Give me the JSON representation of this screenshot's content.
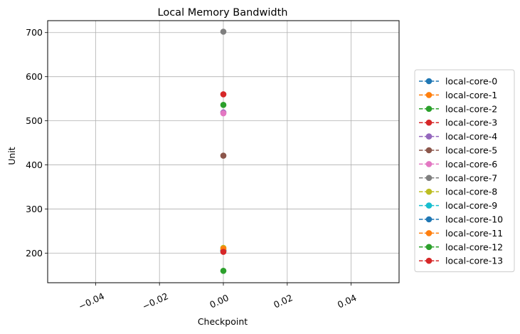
{
  "chart_data": {
    "type": "line",
    "title": "Local Memory Bandwidth",
    "xlabel": "Checkpoint",
    "ylabel": "Unit",
    "xlim": [
      -0.055,
      0.055
    ],
    "ylim": [
      133,
      727
    ],
    "x_ticks": [
      -0.04,
      -0.02,
      0.0,
      0.02,
      0.04
    ],
    "x_tick_labels": [
      "−0.04",
      "−0.02",
      "0.00",
      "0.02",
      "0.04"
    ],
    "y_ticks": [
      200,
      300,
      400,
      500,
      600,
      700
    ],
    "y_tick_labels": [
      "200",
      "300",
      "400",
      "500",
      "600",
      "700"
    ],
    "grid": true,
    "legend_position": "right",
    "line_style": "dashed",
    "marker": "circle",
    "series": [
      {
        "name": "local-core-0",
        "color": "#1f77b4",
        "x": [
          0.0
        ],
        "y": [
          205
        ]
      },
      {
        "name": "local-core-1",
        "color": "#ff7f0e",
        "x": [
          0.0
        ],
        "y": [
          205
        ]
      },
      {
        "name": "local-core-2",
        "color": "#2ca02c",
        "x": [
          0.0
        ],
        "y": [
          536
        ]
      },
      {
        "name": "local-core-3",
        "color": "#d62728",
        "x": [
          0.0
        ],
        "y": [
          560
        ]
      },
      {
        "name": "local-core-4",
        "color": "#9467bd",
        "x": [
          0.0
        ],
        "y": [
          519
        ]
      },
      {
        "name": "local-core-5",
        "color": "#8c564b",
        "x": [
          0.0
        ],
        "y": [
          421
        ]
      },
      {
        "name": "local-core-6",
        "color": "#e377c2",
        "x": [
          0.0
        ],
        "y": [
          517
        ]
      },
      {
        "name": "local-core-7",
        "color": "#7f7f7f",
        "x": [
          0.0
        ],
        "y": [
          702
        ]
      },
      {
        "name": "local-core-8",
        "color": "#bcbd22",
        "x": [
          0.0
        ],
        "y": [
          212
        ]
      },
      {
        "name": "local-core-9",
        "color": "#17becf",
        "x": [
          0.0
        ],
        "y": [
          207
        ]
      },
      {
        "name": "local-core-10",
        "color": "#1f77b4",
        "x": [
          0.0
        ],
        "y": [
          206
        ]
      },
      {
        "name": "local-core-11",
        "color": "#ff7f0e",
        "x": [
          0.0
        ],
        "y": [
          210
        ]
      },
      {
        "name": "local-core-12",
        "color": "#2ca02c",
        "x": [
          0.0
        ],
        "y": [
          160
        ]
      },
      {
        "name": "local-core-13",
        "color": "#d62728",
        "x": [
          0.0
        ],
        "y": [
          203
        ]
      }
    ]
  }
}
